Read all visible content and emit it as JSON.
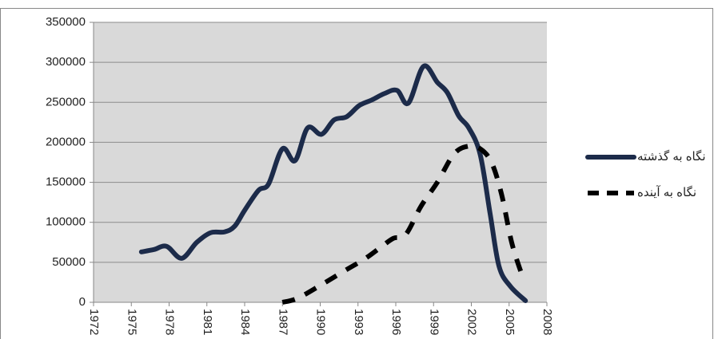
{
  "chart_data": {
    "type": "line",
    "xlim": [
      1972,
      2008
    ],
    "xticks": [
      1972,
      1975,
      1978,
      1981,
      1984,
      1987,
      1990,
      1993,
      1996,
      1999,
      2002,
      2005,
      2008
    ],
    "ylim": [
      0,
      350000
    ],
    "yticks": [
      0,
      50000,
      100000,
      150000,
      200000,
      250000,
      300000,
      350000
    ],
    "grid": true,
    "legend": "right",
    "series": [
      {
        "name": "نگاه به گذشته",
        "color": "#1c2b4a",
        "dash": false,
        "x": [
          1975.8,
          1976.8,
          1977.8,
          1979,
          1980.2,
          1981.3,
          1982.4,
          1983.2,
          1984,
          1985.1,
          1985.9,
          1987,
          1988,
          1989,
          1990.1,
          1991.1,
          1992.1,
          1993.1,
          1994.1,
          1995.1,
          1996.1,
          1997,
          1998.2,
          1999.3,
          2000.1,
          2001,
          2001.8,
          2002.7,
          2003.5,
          2004.2,
          2005.1,
          2006.3
        ],
        "values": [
          63000,
          66000,
          70000,
          55000,
          75000,
          87000,
          88000,
          95000,
          115000,
          140000,
          148000,
          192000,
          177000,
          218000,
          210000,
          228000,
          232000,
          246000,
          253000,
          261000,
          265000,
          249000,
          295000,
          275000,
          262000,
          233000,
          218000,
          185000,
          110000,
          45000,
          20000,
          2000
        ]
      },
      {
        "name": "نگاه به آینده",
        "color": "#000000",
        "dash": true,
        "x": [
          1987,
          1988.2,
          1990.1,
          1992,
          1993.6,
          1994.9,
          1995.8,
          1996.8,
          1998,
          1999.3,
          2000.6,
          2001.7,
          2002.7,
          2003.6,
          2004.4,
          2005.2,
          2006
        ],
        "values": [
          0,
          5000,
          22000,
          40000,
          55000,
          70000,
          80000,
          85000,
          120000,
          150000,
          185000,
          195000,
          192000,
          175000,
          135000,
          75000,
          35000
        ]
      }
    ]
  }
}
